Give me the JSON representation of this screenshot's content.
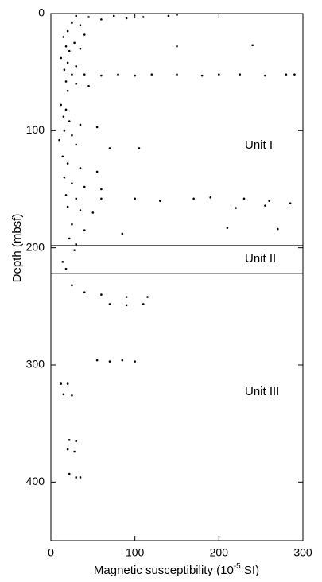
{
  "chart_data": {
    "type": "scatter",
    "ylabel": "Depth (mbsf)",
    "xlabel": {
      "text": "Magnetic susceptibility (10",
      "superscript": "-5",
      "suffix": " SI)"
    },
    "xlim": [
      0,
      300
    ],
    "xticks": [
      0,
      100,
      200,
      300
    ],
    "ylim": [
      0,
      450
    ],
    "yticks": [
      0,
      100,
      200,
      300,
      400
    ],
    "y_inverted": true,
    "color": "#000000",
    "boundaries": [
      198,
      222
    ],
    "annotations": [
      "Unit I",
      "Unit II",
      "Unit III"
    ],
    "x": [
      30,
      45,
      60,
      75,
      90,
      110,
      140,
      150,
      25,
      35,
      20,
      40,
      15,
      28,
      18,
      22,
      35,
      150,
      240,
      12,
      20,
      30,
      16,
      25,
      40,
      60,
      80,
      100,
      120,
      150,
      180,
      200,
      225,
      255,
      280,
      290,
      18,
      30,
      45,
      20,
      12,
      18,
      15,
      22,
      35,
      55,
      16,
      25,
      10,
      30,
      70,
      105,
      14,
      20,
      35,
      55,
      16,
      25,
      40,
      60,
      18,
      30,
      60,
      100,
      130,
      170,
      190,
      230,
      260,
      285,
      20,
      35,
      50,
      220,
      255,
      25,
      40,
      85,
      210,
      270,
      22,
      30,
      28,
      14,
      18,
      25,
      40,
      60,
      90,
      115,
      70,
      90,
      110,
      55,
      70,
      85,
      100,
      12,
      20,
      15,
      25,
      22,
      30,
      20,
      28,
      22,
      30,
      35
    ],
    "y": [
      2,
      3,
      5,
      2,
      4,
      3,
      2,
      1,
      8,
      10,
      15,
      18,
      20,
      25,
      28,
      32,
      30,
      28,
      27,
      38,
      42,
      45,
      48,
      52,
      52,
      53,
      52,
      53,
      52,
      52,
      53,
      52,
      52,
      53,
      52,
      52,
      58,
      60,
      62,
      66,
      78,
      82,
      88,
      92,
      95,
      97,
      100,
      104,
      108,
      112,
      115,
      115,
      122,
      128,
      132,
      135,
      140,
      145,
      148,
      150,
      155,
      158,
      158,
      158,
      160,
      158,
      157,
      158,
      160,
      162,
      165,
      168,
      170,
      166,
      164,
      180,
      185,
      188,
      183,
      184,
      192,
      197,
      202,
      212,
      218,
      232,
      238,
      240,
      242,
      242,
      248,
      249,
      248,
      296,
      297,
      296,
      297,
      316,
      316,
      325,
      326,
      364,
      365,
      372,
      374,
      393,
      396,
      396
    ]
  }
}
